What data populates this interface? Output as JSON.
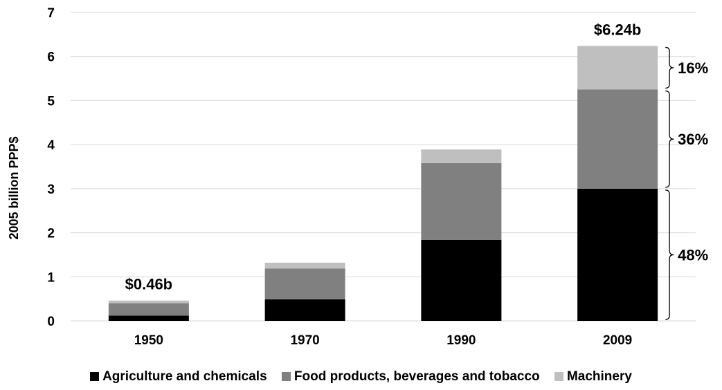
{
  "chart_data": {
    "type": "bar",
    "stacked": true,
    "title": "",
    "xlabel": "",
    "ylabel": "2005 billion PPP$",
    "ylim": [
      0,
      7
    ],
    "yticks": [
      "0",
      "1",
      "2",
      "3",
      "4",
      "5",
      "6",
      "7"
    ],
    "grid": true,
    "legend_position": "bottom",
    "categories": [
      "1950",
      "1970",
      "1990",
      "2009"
    ],
    "series": [
      {
        "name": "Agriculture and chemicals",
        "color": "#000000",
        "values": [
          0.12,
          0.49,
          1.84,
          3.0
        ]
      },
      {
        "name": "Food products, beverages and tobacco",
        "color": "#808080",
        "values": [
          0.28,
          0.7,
          1.74,
          2.25
        ]
      },
      {
        "name": "Machinery",
        "color": "#bfbfbf",
        "values": [
          0.06,
          0.13,
          0.31,
          0.99
        ]
      }
    ],
    "total_labels": {
      "1950": "$0.46b",
      "2009": "$6.24b"
    },
    "share_labels": [
      {
        "category": "2009",
        "series": "Machinery",
        "text": "16%"
      },
      {
        "category": "2009",
        "series": "Food products, beverages and tobacco",
        "text": "36%"
      },
      {
        "category": "2009",
        "series": "Agriculture and chemicals",
        "text": "48%"
      }
    ]
  }
}
